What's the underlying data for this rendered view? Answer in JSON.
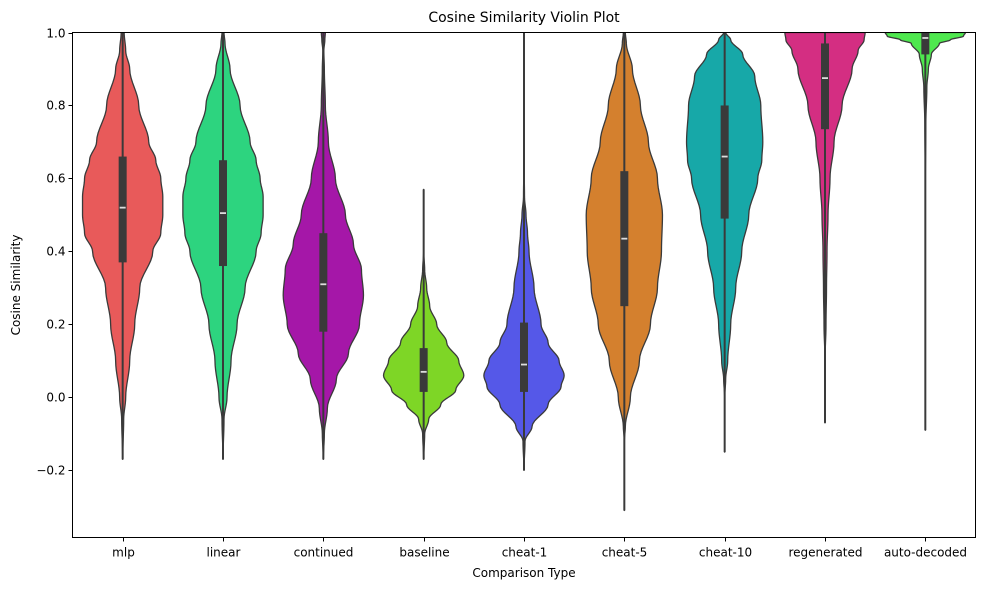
{
  "chart_data": {
    "type": "violin",
    "title": "Cosine Similarity Violin Plot",
    "xlabel": "Comparison Type",
    "ylabel": "Cosine Similarity",
    "ylim": [
      -0.384,
      1.0
    ],
    "yticks": [
      -0.2,
      0.0,
      0.2,
      0.4,
      0.6,
      0.8,
      1.0
    ],
    "ytick_labels": [
      "−0.2",
      "0.0",
      "0.2",
      "0.4",
      "0.6",
      "0.8",
      "1.0"
    ],
    "categories": [
      "mlp",
      "linear",
      "continued",
      "baseline",
      "cheat-1",
      "cheat-5",
      "cheat-10",
      "regenerated",
      "auto-decoded"
    ],
    "grid": false,
    "series": [
      {
        "name": "mlp",
        "color": "#E85A5A",
        "min": -0.17,
        "q1": 0.37,
        "median": 0.52,
        "q3": 0.66,
        "max": 1.0,
        "whisker_low": -0.17,
        "whisker_high": 1.0,
        "density": [
          [
            -0.17,
            0.0
          ],
          [
            -0.06,
            0.01
          ],
          [
            0.0,
            0.03
          ],
          [
            0.1,
            0.07
          ],
          [
            0.2,
            0.12
          ],
          [
            0.3,
            0.17
          ],
          [
            0.4,
            0.3
          ],
          [
            0.45,
            0.38
          ],
          [
            0.5,
            0.4
          ],
          [
            0.55,
            0.4
          ],
          [
            0.6,
            0.38
          ],
          [
            0.65,
            0.33
          ],
          [
            0.7,
            0.26
          ],
          [
            0.8,
            0.16
          ],
          [
            0.9,
            0.07
          ],
          [
            0.95,
            0.03
          ],
          [
            1.0,
            0.015
          ]
        ]
      },
      {
        "name": "linear",
        "color": "#2DD47F",
        "min": -0.17,
        "q1": 0.36,
        "median": 0.505,
        "q3": 0.65,
        "max": 1.0,
        "whisker_low": -0.17,
        "whisker_high": 1.0,
        "density": [
          [
            -0.17,
            0.0
          ],
          [
            -0.06,
            0.01
          ],
          [
            0.0,
            0.04
          ],
          [
            0.1,
            0.08
          ],
          [
            0.2,
            0.14
          ],
          [
            0.3,
            0.22
          ],
          [
            0.4,
            0.33
          ],
          [
            0.45,
            0.38
          ],
          [
            0.5,
            0.4
          ],
          [
            0.55,
            0.4
          ],
          [
            0.6,
            0.37
          ],
          [
            0.65,
            0.33
          ],
          [
            0.7,
            0.27
          ],
          [
            0.8,
            0.17
          ],
          [
            0.9,
            0.07
          ],
          [
            0.97,
            0.02
          ],
          [
            1.0,
            0.01
          ]
        ]
      },
      {
        "name": "continued",
        "color": "#A517A8",
        "min": -0.17,
        "q1": 0.18,
        "median": 0.31,
        "q3": 0.45,
        "max": 1.0,
        "whisker_low": -0.17,
        "whisker_high": 1.0,
        "density": [
          [
            -0.17,
            0.0
          ],
          [
            -0.1,
            0.01
          ],
          [
            -0.03,
            0.04
          ],
          [
            0.05,
            0.13
          ],
          [
            0.12,
            0.25
          ],
          [
            0.2,
            0.36
          ],
          [
            0.28,
            0.4
          ],
          [
            0.35,
            0.38
          ],
          [
            0.42,
            0.3
          ],
          [
            0.5,
            0.22
          ],
          [
            0.6,
            0.12
          ],
          [
            0.7,
            0.05
          ],
          [
            0.8,
            0.02
          ],
          [
            0.9,
            0.01
          ],
          [
            0.95,
            0.005
          ],
          [
            0.98,
            0.015
          ],
          [
            1.0,
            0.02
          ]
        ]
      },
      {
        "name": "baseline",
        "color": "#7ED626",
        "min": -0.17,
        "q1": 0.015,
        "median": 0.07,
        "q3": 0.135,
        "max": 0.57,
        "whisker_low": -0.17,
        "whisker_high": 0.57,
        "density": [
          [
            -0.17,
            0.0
          ],
          [
            -0.1,
            0.01
          ],
          [
            -0.06,
            0.05
          ],
          [
            -0.02,
            0.17
          ],
          [
            0.02,
            0.32
          ],
          [
            0.06,
            0.4
          ],
          [
            0.1,
            0.35
          ],
          [
            0.15,
            0.23
          ],
          [
            0.2,
            0.13
          ],
          [
            0.25,
            0.06
          ],
          [
            0.3,
            0.03
          ],
          [
            0.35,
            0.01
          ],
          [
            0.4,
            0.0
          ],
          [
            0.57,
            0.0
          ]
        ]
      },
      {
        "name": "cheat-1",
        "color": "#5558E8",
        "min": -0.2,
        "q1": 0.015,
        "median": 0.09,
        "q3": 0.205,
        "max": 1.0,
        "whisker_low": -0.2,
        "whisker_high": 1.0,
        "density": [
          [
            -0.2,
            0.0
          ],
          [
            -0.12,
            0.01
          ],
          [
            -0.08,
            0.08
          ],
          [
            -0.02,
            0.24
          ],
          [
            0.03,
            0.37
          ],
          [
            0.06,
            0.4
          ],
          [
            0.1,
            0.35
          ],
          [
            0.15,
            0.24
          ],
          [
            0.2,
            0.17
          ],
          [
            0.3,
            0.1
          ],
          [
            0.4,
            0.05
          ],
          [
            0.45,
            0.035
          ],
          [
            0.5,
            0.02
          ],
          [
            0.55,
            0.005
          ],
          [
            0.65,
            0.0
          ],
          [
            1.0,
            0.0
          ]
        ]
      },
      {
        "name": "cheat-5",
        "color": "#D4802E",
        "min": -0.31,
        "q1": 0.25,
        "median": 0.435,
        "q3": 0.62,
        "max": 1.0,
        "whisker_low": -0.31,
        "whisker_high": 1.0,
        "density": [
          [
            -0.31,
            0.0
          ],
          [
            -0.12,
            0.0
          ],
          [
            -0.08,
            0.01
          ],
          [
            0.0,
            0.06
          ],
          [
            0.1,
            0.15
          ],
          [
            0.2,
            0.26
          ],
          [
            0.3,
            0.33
          ],
          [
            0.4,
            0.37
          ],
          [
            0.5,
            0.38
          ],
          [
            0.6,
            0.33
          ],
          [
            0.7,
            0.24
          ],
          [
            0.8,
            0.16
          ],
          [
            0.9,
            0.08
          ],
          [
            0.97,
            0.02
          ],
          [
            1.0,
            0.01
          ]
        ]
      },
      {
        "name": "cheat-10",
        "color": "#17A8A8",
        "min": -0.15,
        "q1": 0.49,
        "median": 0.66,
        "q3": 0.8,
        "max": 1.0,
        "whisker_low": -0.15,
        "whisker_high": 1.0,
        "density": [
          [
            -0.15,
            0.0
          ],
          [
            0.0,
            0.0
          ],
          [
            0.05,
            0.01
          ],
          [
            0.1,
            0.03
          ],
          [
            0.2,
            0.06
          ],
          [
            0.3,
            0.11
          ],
          [
            0.4,
            0.17
          ],
          [
            0.5,
            0.24
          ],
          [
            0.6,
            0.33
          ],
          [
            0.65,
            0.37
          ],
          [
            0.7,
            0.38
          ],
          [
            0.8,
            0.36
          ],
          [
            0.88,
            0.3
          ],
          [
            0.94,
            0.18
          ],
          [
            0.98,
            0.06
          ],
          [
            1.0,
            0.01
          ]
        ]
      },
      {
        "name": "regenerated",
        "color": "#D42E82",
        "min": -0.07,
        "q1": 0.735,
        "median": 0.875,
        "q3": 0.97,
        "max": 1.0,
        "whisker_low": -0.07,
        "whisker_high": 1.0,
        "density": [
          [
            -0.07,
            0.0
          ],
          [
            0.1,
            0.0
          ],
          [
            0.2,
            0.01
          ],
          [
            0.3,
            0.015
          ],
          [
            0.4,
            0.02
          ],
          [
            0.5,
            0.03
          ],
          [
            0.6,
            0.05
          ],
          [
            0.7,
            0.09
          ],
          [
            0.8,
            0.17
          ],
          [
            0.9,
            0.27
          ],
          [
            0.95,
            0.33
          ],
          [
            0.98,
            0.39
          ],
          [
            1.0,
            0.4
          ]
        ]
      },
      {
        "name": "auto-decoded",
        "color": "#4EE84E",
        "min": -0.09,
        "q1": 0.94,
        "median": 0.985,
        "q3": 1.0,
        "max": 1.0,
        "whisker_low": -0.09,
        "whisker_high": 1.0,
        "density": [
          [
            -0.09,
            0.0
          ],
          [
            0.6,
            0.0
          ],
          [
            0.75,
            0.005
          ],
          [
            0.85,
            0.015
          ],
          [
            0.9,
            0.03
          ],
          [
            0.94,
            0.06
          ],
          [
            0.97,
            0.14
          ],
          [
            0.98,
            0.25
          ],
          [
            0.99,
            0.38
          ],
          [
            1.0,
            0.4
          ]
        ]
      }
    ]
  },
  "colors": {
    "edge": "#3a3a3a",
    "median_marker": "#dddddd",
    "background": "#ffffff"
  }
}
